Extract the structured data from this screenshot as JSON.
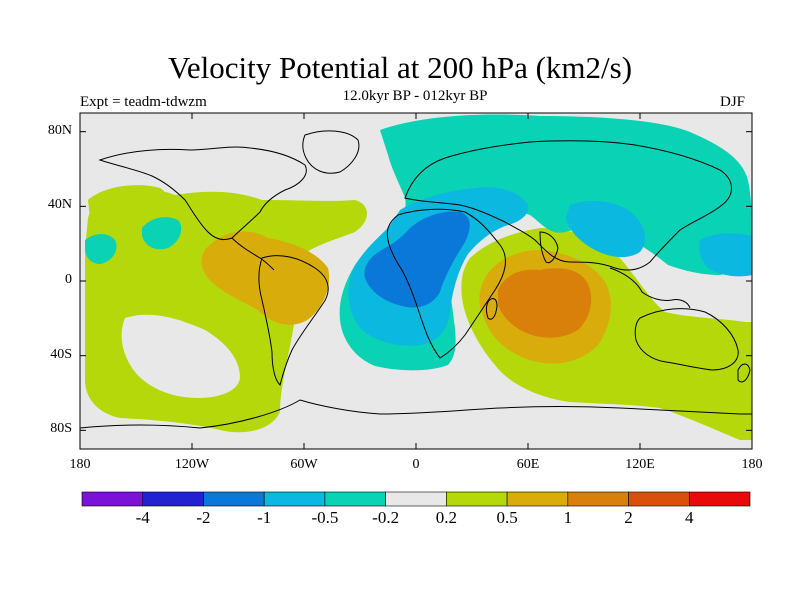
{
  "title": "Velocity Potential at 200 hPa (km2/s)",
  "subtitle": "12.0kyr BP - 012kyr BP",
  "experiment": "Expt = teadm-tdwzm",
  "season": "DJF",
  "map": {
    "lon_range": [
      -180,
      180
    ],
    "lat_range": [
      -90,
      90
    ],
    "lat_ticks": [
      {
        "value": 80,
        "label": "80N"
      },
      {
        "value": 40,
        "label": "40N"
      },
      {
        "value": 0,
        "label": "0"
      },
      {
        "value": -40,
        "label": "40S"
      },
      {
        "value": -80,
        "label": "80S"
      }
    ],
    "lon_ticks": [
      {
        "value": -180,
        "label": "180"
      },
      {
        "value": -120,
        "label": "120W"
      },
      {
        "value": -60,
        "label": "60W"
      },
      {
        "value": 0,
        "label": "0"
      },
      {
        "value": 60,
        "label": "60E"
      },
      {
        "value": 120,
        "label": "120E"
      },
      {
        "value": 180,
        "label": "180"
      }
    ],
    "background_color": "#e8e8e8",
    "coastline_color": "#000000"
  },
  "colorbar": {
    "colors": [
      "#7a12d8",
      "#2222d0",
      "#0a78d8",
      "#0ab8e0",
      "#0ad2b4",
      "#e8e8e8",
      "#b4d80a",
      "#d8ac0a",
      "#d8800a",
      "#d8500a",
      "#e80a0a"
    ],
    "labels": [
      "-4",
      "-2",
      "-1",
      "-0.5",
      "-0.2",
      "0.2",
      "0.5",
      "1",
      "2",
      "4"
    ]
  }
}
